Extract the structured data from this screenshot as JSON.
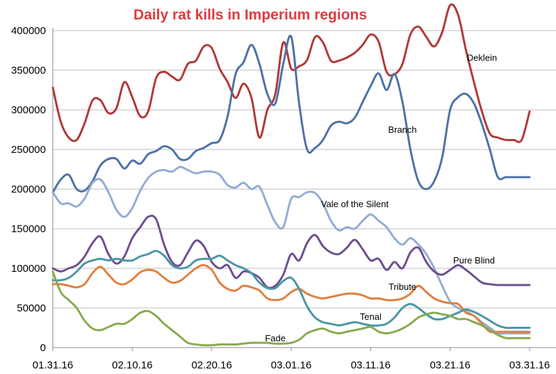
{
  "chart_data": {
    "type": "line",
    "title": "Daily rat kills in Imperium regions",
    "colors": {
      "title": "#e03a3e"
    },
    "xlabel": "",
    "ylabel": "",
    "ylim": [
      0,
      400000
    ],
    "y_ticks": [
      0,
      50000,
      100000,
      150000,
      200000,
      250000,
      300000,
      350000,
      400000
    ],
    "y_tick_labels": [
      "0",
      "50000",
      "100000",
      "150000",
      "200000",
      "250000",
      "300000",
      "350000",
      "400000"
    ],
    "x_tick_labels": [
      "01.31.16",
      "02.10.16",
      "02.20.16",
      "03.01.16",
      "03.11.16",
      "03.21.16",
      "03.31.16"
    ],
    "x_tick_dates": [
      "2016-01-31",
      "2016-02-10",
      "2016-02-20",
      "2016-03-01",
      "2016-03-11",
      "2016-03-21",
      "2016-03-31"
    ],
    "x": [
      "2016-01-31",
      "2016-02-01",
      "2016-02-02",
      "2016-02-03",
      "2016-02-04",
      "2016-02-05",
      "2016-02-06",
      "2016-02-07",
      "2016-02-08",
      "2016-02-09",
      "2016-02-10",
      "2016-02-11",
      "2016-02-12",
      "2016-02-13",
      "2016-02-14",
      "2016-02-15",
      "2016-02-16",
      "2016-02-17",
      "2016-02-18",
      "2016-02-19",
      "2016-02-20",
      "2016-02-21",
      "2016-02-22",
      "2016-02-23",
      "2016-02-24",
      "2016-02-25",
      "2016-02-26",
      "2016-02-27",
      "2016-02-28",
      "2016-02-29",
      "2016-03-01",
      "2016-03-02",
      "2016-03-03",
      "2016-03-04",
      "2016-03-05",
      "2016-03-06",
      "2016-03-07",
      "2016-03-08",
      "2016-03-09",
      "2016-03-10",
      "2016-03-11",
      "2016-03-12",
      "2016-03-13",
      "2016-03-14",
      "2016-03-15",
      "2016-03-16",
      "2016-03-17",
      "2016-03-18",
      "2016-03-19",
      "2016-03-20",
      "2016-03-21",
      "2016-03-22",
      "2016-03-23",
      "2016-03-24",
      "2016-03-25",
      "2016-03-26",
      "2016-03-27",
      "2016-03-28",
      "2016-03-29",
      "2016-03-30",
      "2016-03-31"
    ],
    "series": [
      {
        "name": "Deklein",
        "color": "#b03a36",
        "label_x": "2016-03-25",
        "label_y": 362000,
        "values": [
          328000,
          285000,
          265000,
          262000,
          283000,
          312000,
          312000,
          296000,
          302000,
          335000,
          316000,
          292000,
          298000,
          340000,
          348000,
          342000,
          338000,
          358000,
          362000,
          380000,
          378000,
          352000,
          335000,
          315000,
          333000,
          315000,
          265000,
          300000,
          320000,
          385000,
          352000,
          355000,
          363000,
          392000,
          385000,
          362000,
          362000,
          366000,
          372000,
          382000,
          395000,
          386000,
          348000,
          345000,
          358000,
          395000,
          405000,
          392000,
          380000,
          398000,
          432000,
          420000,
          375000,
          335000,
          298000,
          270000,
          265000,
          262000,
          262000,
          262000,
          298000
        ]
      },
      {
        "name": "Branch",
        "color": "#4e72a6",
        "label_x": "2016-03-15",
        "label_y": 271000,
        "values": [
          196000,
          212000,
          218000,
          200000,
          198000,
          210000,
          230000,
          238000,
          238000,
          226000,
          236000,
          232000,
          244000,
          248000,
          254000,
          250000,
          238000,
          238000,
          248000,
          252000,
          258000,
          262000,
          292000,
          345000,
          360000,
          382000,
          358000,
          320000,
          308000,
          358000,
          392000,
          308000,
          250000,
          252000,
          262000,
          280000,
          285000,
          283000,
          290000,
          310000,
          330000,
          346000,
          325000,
          345000,
          310000,
          250000,
          210000,
          200000,
          210000,
          240000,
          300000,
          316000,
          320000,
          308000,
          282000,
          250000,
          215000,
          215000,
          215000,
          215000,
          215000
        ]
      },
      {
        "name": "Vale of the Silent",
        "color": "#94acd2",
        "label_x": "2016-03-09",
        "label_y": 177000,
        "values": [
          196000,
          182000,
          182000,
          178000,
          188000,
          208000,
          212000,
          196000,
          174000,
          165000,
          176000,
          198000,
          214000,
          222000,
          224000,
          222000,
          228000,
          224000,
          220000,
          222000,
          222000,
          218000,
          205000,
          202000,
          208000,
          200000,
          203000,
          180000,
          158000,
          152000,
          188000,
          190000,
          196000,
          195000,
          182000,
          160000,
          148000,
          152000,
          150000,
          160000,
          168000,
          160000,
          152000,
          138000,
          130000,
          138000,
          130000,
          118000,
          100000,
          78000,
          58000,
          50000,
          46000,
          40000,
          32000,
          25000,
          18000,
          18000,
          18000,
          18000,
          18000
        ]
      },
      {
        "name": "Pure Blind",
        "color": "#6e4f8e",
        "label_x": "2016-03-24",
        "label_y": 106000,
        "values": [
          100000,
          96000,
          100000,
          104000,
          115000,
          132000,
          140000,
          118000,
          106000,
          115000,
          138000,
          152000,
          165000,
          162000,
          130000,
          108000,
          104000,
          120000,
          135000,
          128000,
          108000,
          100000,
          104000,
          88000,
          96000,
          94000,
          88000,
          76000,
          78000,
          92000,
          118000,
          110000,
          132000,
          142000,
          128000,
          120000,
          118000,
          126000,
          136000,
          124000,
          110000,
          112000,
          98000,
          108000,
          100000,
          120000,
          126000,
          108000,
          96000,
          92000,
          98000,
          104000,
          98000,
          90000,
          82000,
          80000,
          79000,
          79000,
          79000,
          79000,
          79000
        ]
      },
      {
        "name": "Tribute",
        "color": "#e08040",
        "label_x": "2016-03-15",
        "label_y": 73000,
        "values": [
          80000,
          80000,
          78000,
          76000,
          80000,
          94000,
          102000,
          92000,
          82000,
          80000,
          86000,
          95000,
          98000,
          96000,
          88000,
          82000,
          84000,
          92000,
          100000,
          104000,
          98000,
          82000,
          74000,
          72000,
          78000,
          76000,
          72000,
          62000,
          60000,
          62000,
          70000,
          74000,
          68000,
          64000,
          62000,
          64000,
          66000,
          68000,
          68000,
          66000,
          62000,
          62000,
          60000,
          60000,
          62000,
          68000,
          78000,
          70000,
          62000,
          58000,
          56000,
          55000,
          44000,
          40000,
          30000,
          20000,
          20000,
          20000,
          20000,
          20000,
          20000
        ]
      },
      {
        "name": "Tenal",
        "color": "#4a97a5",
        "label_x": "2016-03-11",
        "label_y": 35000,
        "values": [
          85000,
          85000,
          88000,
          96000,
          106000,
          110000,
          112000,
          110000,
          112000,
          110000,
          110000,
          115000,
          118000,
          122000,
          116000,
          104000,
          100000,
          102000,
          110000,
          112000,
          112000,
          116000,
          110000,
          104000,
          100000,
          94000,
          82000,
          75000,
          75000,
          84000,
          88000,
          74000,
          52000,
          38000,
          32000,
          30000,
          28000,
          30000,
          32000,
          30000,
          28000,
          28000,
          30000,
          38000,
          50000,
          55000,
          50000,
          42000,
          36000,
          36000,
          40000,
          44000,
          48000,
          45000,
          40000,
          34000,
          28000,
          25000,
          25000,
          25000,
          25000
        ]
      },
      {
        "name": "Fade",
        "color": "#88aa4e",
        "label_x": "2016-02-28",
        "label_y": 8000,
        "values": [
          96000,
          70000,
          60000,
          50000,
          34000,
          24000,
          22000,
          26000,
          30000,
          30000,
          36000,
          44000,
          46000,
          40000,
          30000,
          22000,
          14000,
          6000,
          4000,
          3000,
          3000,
          4000,
          4000,
          4000,
          5000,
          6000,
          6000,
          6000,
          5000,
          5000,
          6000,
          10000,
          18000,
          22000,
          24000,
          20000,
          18000,
          20000,
          22000,
          24000,
          26000,
          20000,
          18000,
          20000,
          24000,
          30000,
          38000,
          42000,
          44000,
          42000,
          40000,
          36000,
          36000,
          32000,
          28000,
          22000,
          16000,
          12000,
          12000,
          12000,
          12000
        ]
      }
    ]
  }
}
